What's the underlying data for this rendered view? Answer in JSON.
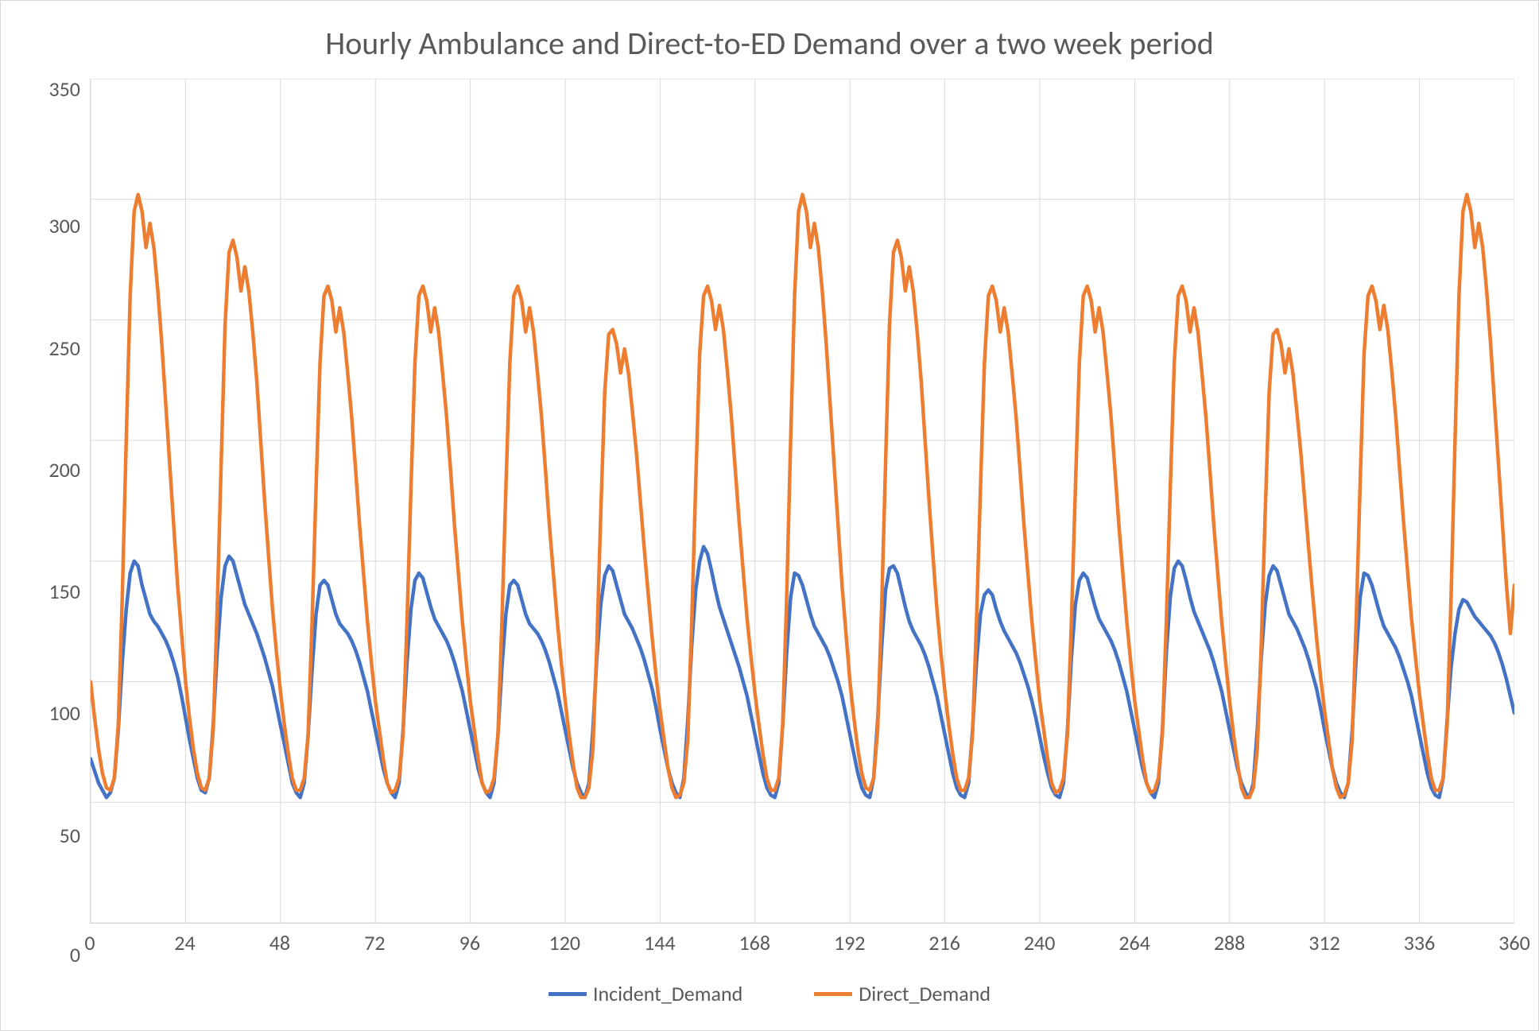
{
  "chart": {
    "type": "line",
    "title": "Hourly Ambulance and Direct-to-ED Demand over a two week period",
    "title_fontsize": 40,
    "title_color": "#595959",
    "background_color": "#ffffff",
    "border_color": "#d9d9d9",
    "grid_color": "#d9d9d9",
    "axis_label_color": "#595959",
    "tick_fontsize": 26,
    "xlim": [
      0,
      360
    ],
    "ylim": [
      0,
      350
    ],
    "xtick_step": 24,
    "ytick_step": 50,
    "xticks": [
      0,
      24,
      48,
      72,
      96,
      120,
      144,
      168,
      192,
      216,
      240,
      264,
      288,
      312,
      336,
      360
    ],
    "yticks": [
      0,
      50,
      100,
      150,
      200,
      250,
      300,
      350
    ],
    "line_width": 4.5,
    "legend": {
      "position": "bottom",
      "items": [
        "Incident_Demand",
        "Direct_Demand"
      ]
    },
    "series": [
      {
        "name": "Incident_Demand",
        "color": "#4472c4",
        "values": [
          68,
          63,
          58,
          55,
          52,
          54,
          60,
          80,
          108,
          130,
          145,
          150,
          148,
          140,
          134,
          128,
          125,
          123,
          120,
          117,
          113,
          108,
          102,
          94,
          85,
          76,
          68,
          60,
          55,
          54,
          60,
          82,
          112,
          135,
          148,
          152,
          150,
          144,
          138,
          132,
          128,
          124,
          120,
          115,
          110,
          104,
          98,
          90,
          82,
          74,
          66,
          58,
          54,
          52,
          58,
          78,
          105,
          128,
          140,
          142,
          140,
          134,
          128,
          124,
          122,
          120,
          117,
          113,
          108,
          102,
          96,
          88,
          80,
          72,
          64,
          58,
          54,
          52,
          58,
          80,
          108,
          130,
          142,
          145,
          143,
          137,
          131,
          126,
          123,
          120,
          117,
          113,
          108,
          102,
          96,
          88,
          80,
          72,
          64,
          58,
          54,
          52,
          58,
          78,
          106,
          128,
          140,
          142,
          140,
          134,
          128,
          124,
          122,
          120,
          117,
          113,
          108,
          102,
          96,
          88,
          80,
          72,
          64,
          58,
          54,
          52,
          58,
          80,
          110,
          132,
          144,
          148,
          146,
          140,
          134,
          128,
          125,
          122,
          118,
          114,
          109,
          103,
          97,
          89,
          80,
          72,
          64,
          58,
          54,
          52,
          60,
          84,
          115,
          138,
          150,
          156,
          153,
          146,
          138,
          131,
          126,
          121,
          116,
          111,
          106,
          100,
          94,
          86,
          78,
          70,
          62,
          56,
          53,
          52,
          58,
          82,
          112,
          135,
          145,
          144,
          140,
          134,
          128,
          123,
          120,
          117,
          114,
          110,
          105,
          100,
          94,
          86,
          78,
          70,
          62,
          56,
          53,
          52,
          60,
          84,
          114,
          138,
          147,
          148,
          145,
          138,
          131,
          125,
          121,
          118,
          115,
          111,
          106,
          100,
          94,
          86,
          78,
          70,
          62,
          56,
          53,
          52,
          58,
          80,
          108,
          128,
          136,
          138,
          136,
          130,
          125,
          121,
          118,
          115,
          112,
          108,
          103,
          98,
          92,
          85,
          77,
          69,
          62,
          56,
          53,
          52,
          58,
          80,
          110,
          132,
          142,
          145,
          143,
          137,
          131,
          126,
          123,
          120,
          117,
          113,
          108,
          102,
          96,
          88,
          80,
          72,
          64,
          58,
          54,
          52,
          58,
          80,
          112,
          135,
          147,
          150,
          148,
          142,
          135,
          129,
          125,
          121,
          117,
          113,
          108,
          102,
          96,
          88,
          80,
          72,
          64,
          58,
          54,
          52,
          58,
          80,
          110,
          132,
          144,
          148,
          146,
          140,
          134,
          128,
          125,
          122,
          118,
          114,
          109,
          103,
          97,
          89,
          80,
          72,
          64,
          58,
          54,
          52,
          58,
          80,
          110,
          135,
          145,
          144,
          140,
          134,
          128,
          123,
          120,
          117,
          114,
          110,
          105,
          100,
          94,
          86,
          78,
          70,
          62,
          56,
          53,
          52,
          60,
          84,
          106,
          120,
          130,
          134,
          133,
          130,
          127,
          125,
          123,
          121,
          119,
          116,
          112,
          107,
          101,
          94,
          87
        ]
      },
      {
        "name": "Direct_Demand",
        "color": "#ed7d31",
        "values": [
          100,
          85,
          72,
          62,
          56,
          55,
          60,
          82,
          135,
          200,
          260,
          295,
          302,
          295,
          280,
          290,
          280,
          262,
          240,
          215,
          190,
          165,
          140,
          120,
          100,
          85,
          72,
          62,
          56,
          55,
          60,
          80,
          130,
          190,
          248,
          278,
          283,
          276,
          262,
          272,
          262,
          245,
          225,
          200,
          175,
          152,
          130,
          112,
          96,
          82,
          70,
          60,
          55,
          55,
          60,
          78,
          125,
          180,
          232,
          260,
          264,
          258,
          245,
          255,
          245,
          228,
          210,
          188,
          165,
          145,
          125,
          108,
          92,
          80,
          68,
          58,
          54,
          55,
          60,
          78,
          125,
          180,
          232,
          260,
          264,
          258,
          245,
          255,
          245,
          228,
          210,
          188,
          165,
          145,
          125,
          108,
          92,
          80,
          68,
          58,
          54,
          55,
          60,
          78,
          125,
          180,
          232,
          260,
          264,
          258,
          245,
          255,
          245,
          228,
          210,
          188,
          165,
          145,
          125,
          108,
          92,
          78,
          66,
          56,
          52,
          52,
          56,
          72,
          115,
          170,
          220,
          244,
          246,
          240,
          228,
          238,
          228,
          212,
          195,
          175,
          155,
          136,
          118,
          102,
          88,
          76,
          64,
          56,
          52,
          53,
          58,
          76,
          125,
          182,
          236,
          260,
          264,
          258,
          246,
          256,
          246,
          229,
          210,
          188,
          166,
          146,
          126,
          110,
          95,
          82,
          70,
          60,
          55,
          55,
          60,
          82,
          135,
          200,
          260,
          295,
          302,
          295,
          280,
          290,
          280,
          262,
          240,
          215,
          190,
          165,
          140,
          120,
          100,
          85,
          72,
          62,
          56,
          55,
          60,
          80,
          130,
          190,
          248,
          278,
          283,
          276,
          262,
          272,
          262,
          245,
          225,
          200,
          175,
          152,
          130,
          112,
          96,
          82,
          70,
          60,
          55,
          55,
          60,
          78,
          125,
          180,
          232,
          260,
          264,
          258,
          245,
          255,
          245,
          228,
          210,
          188,
          165,
          145,
          125,
          108,
          92,
          80,
          68,
          58,
          54,
          55,
          60,
          78,
          125,
          180,
          232,
          260,
          264,
          258,
          245,
          255,
          245,
          228,
          210,
          188,
          165,
          145,
          125,
          108,
          92,
          80,
          68,
          58,
          54,
          55,
          60,
          78,
          125,
          180,
          232,
          260,
          264,
          258,
          245,
          255,
          245,
          228,
          210,
          188,
          165,
          145,
          125,
          108,
          92,
          78,
          66,
          56,
          52,
          52,
          56,
          72,
          115,
          170,
          220,
          244,
          246,
          240,
          228,
          238,
          228,
          212,
          195,
          175,
          155,
          136,
          118,
          102,
          88,
          76,
          64,
          56,
          52,
          53,
          58,
          76,
          125,
          182,
          236,
          260,
          264,
          258,
          246,
          256,
          246,
          229,
          210,
          188,
          166,
          146,
          126,
          110,
          95,
          82,
          70,
          60,
          55,
          55,
          60,
          82,
          135,
          200,
          260,
          295,
          302,
          295,
          280,
          290,
          280,
          262,
          240,
          215,
          190,
          165,
          140,
          120,
          140
        ]
      }
    ]
  }
}
